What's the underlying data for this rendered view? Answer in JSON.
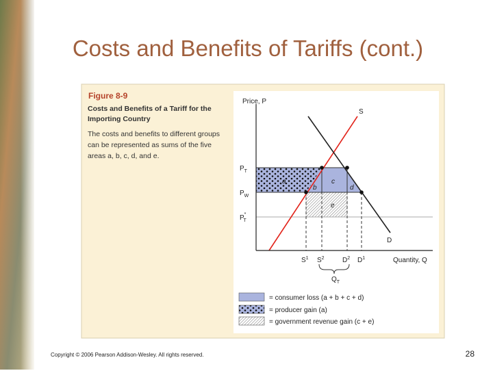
{
  "slide": {
    "title": "Costs and Benefits of Tariffs (cont.)",
    "copyright": "Copyright © 2006 Pearson Addison-Wesley. All rights reserved.",
    "page_number": "28"
  },
  "figure": {
    "label": "Figure 8-9",
    "heading": "Costs and Benefits of a Tariff for the Importing Country",
    "description": "The costs and benefits to different groups can be represented as sums of the five areas a, b, c, d, and e.",
    "diagram": {
      "y_axis_label": "Price, P",
      "x_axis_label": "Quantity, Q",
      "supply_label": "S",
      "demand_label": "D",
      "price_labels": [
        {
          "main": "P",
          "sub": "T"
        },
        {
          "main": "P",
          "sub": "W"
        },
        {
          "main": "P",
          "sub": "T",
          "sup": "*"
        }
      ],
      "area_labels": [
        "a",
        "b",
        "c",
        "d",
        "e"
      ],
      "quantity_labels": [
        {
          "main": "S",
          "sup": "1"
        },
        {
          "main": "S",
          "sup": "2"
        },
        {
          "main": "D",
          "sup": "2"
        },
        {
          "main": "D",
          "sup": "1"
        }
      ],
      "imports_label": {
        "main": "Q",
        "sub": "T"
      }
    },
    "legend": [
      "= consumer loss (a + b + c + d)",
      "= producer gain (a)",
      "= government revenue gain (c + e)"
    ]
  }
}
